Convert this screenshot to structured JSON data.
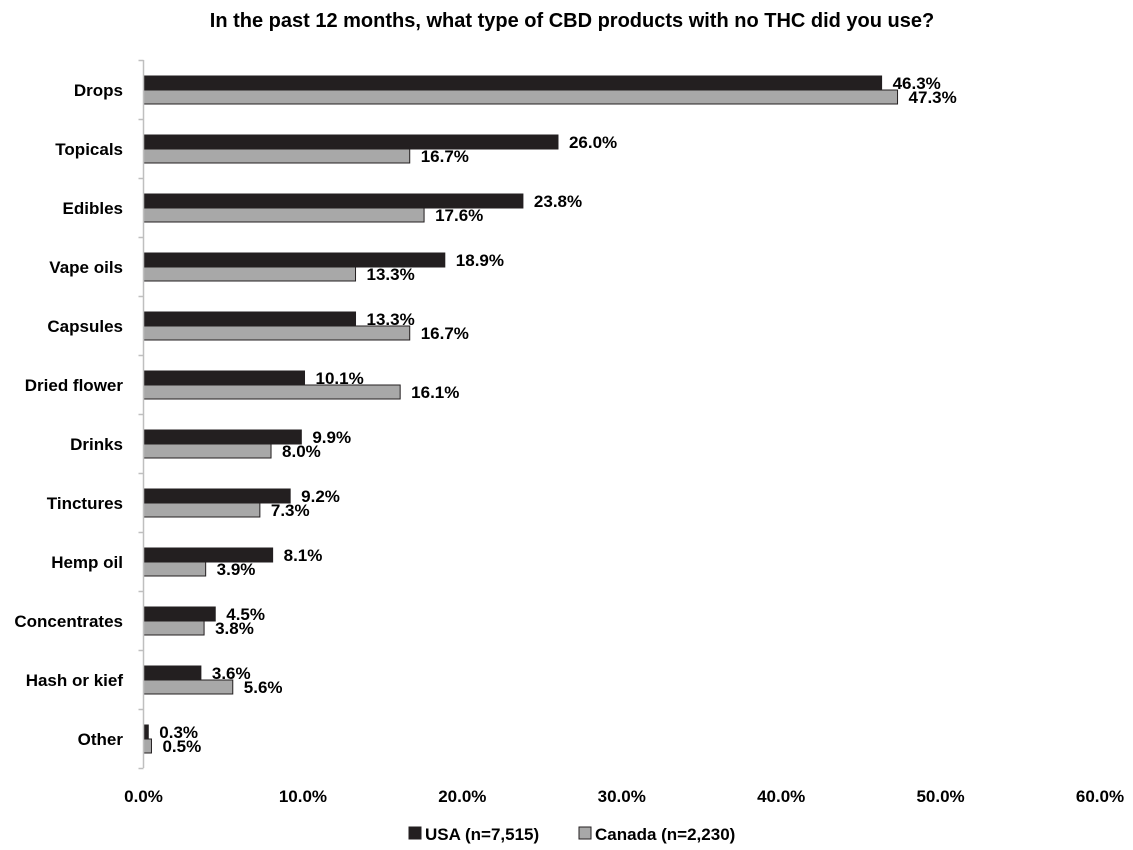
{
  "chart_data": {
    "type": "bar",
    "orientation": "horizontal",
    "title": "In the past 12 months, what type of CBD products with no THC did you use?",
    "categories": [
      "Drops",
      "Topicals",
      "Edibles",
      "Vape oils",
      "Capsules",
      "Dried flower",
      "Drinks",
      "Tinctures",
      "Hemp oil",
      "Concentrates",
      "Hash or kief",
      "Other"
    ],
    "series": [
      {
        "name": "USA (n=7,515)",
        "color": "#231f20",
        "values": [
          46.3,
          26.0,
          23.8,
          18.9,
          13.3,
          10.1,
          9.9,
          9.2,
          8.1,
          4.5,
          3.6,
          0.3
        ],
        "labels": [
          "46.3%",
          "26.0%",
          "23.8%",
          "18.9%",
          "13.3%",
          "10.1%",
          "9.9%",
          "9.2%",
          "8.1%",
          "4.5%",
          "3.6%",
          "0.3%"
        ]
      },
      {
        "name": "Canada (n=2,230)",
        "color": "#a8a8a8",
        "values": [
          47.3,
          16.7,
          17.6,
          13.3,
          16.7,
          16.1,
          8.0,
          7.3,
          3.9,
          3.8,
          5.6,
          0.5
        ],
        "labels": [
          "47.3%",
          "16.7%",
          "17.6%",
          "13.3%",
          "16.7%",
          "16.1%",
          "8.0%",
          "7.3%",
          "3.9%",
          "3.8%",
          "5.6%",
          "0.5%"
        ]
      }
    ],
    "xlim": [
      0,
      60
    ],
    "xticks": [
      0,
      10,
      20,
      30,
      40,
      50,
      60
    ],
    "xtick_labels": [
      "0.0%",
      "10.0%",
      "20.0%",
      "30.0%",
      "40.0%",
      "50.0%",
      "60.0%"
    ],
    "xlabel": "",
    "ylabel": "",
    "grid": false,
    "legend_position": "bottom"
  }
}
